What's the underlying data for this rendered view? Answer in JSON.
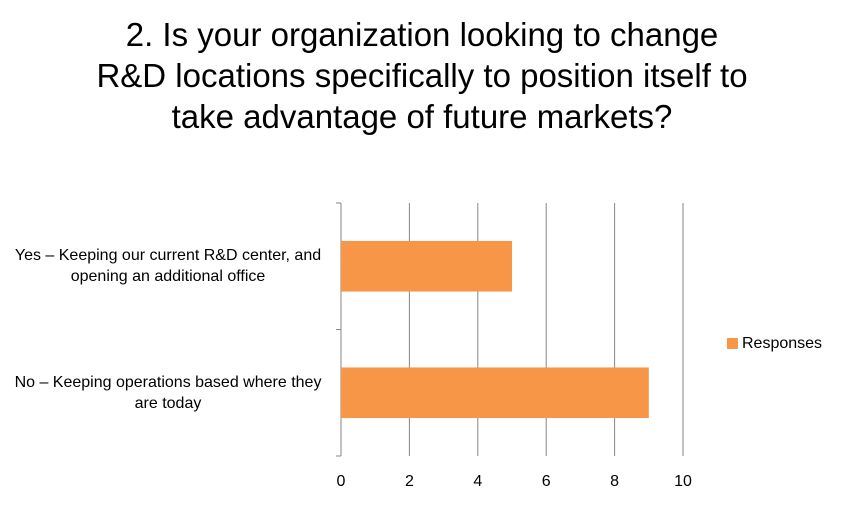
{
  "chart_data": {
    "type": "hbar",
    "title": "2. Is your organization looking to change R&D locations specifically to position itself to take advantage of future markets?",
    "categories": [
      "Yes – Keeping our current R&D center, and opening an additional office",
      "No – Keeping operations based where they are today"
    ],
    "series": [
      {
        "name": "Responses",
        "color": "#f79646",
        "values": [
          5,
          9
        ]
      }
    ],
    "xlim": [
      0,
      10
    ],
    "xticks": [
      0,
      2,
      4,
      6,
      8,
      10
    ],
    "grid": true,
    "legend": "right"
  }
}
